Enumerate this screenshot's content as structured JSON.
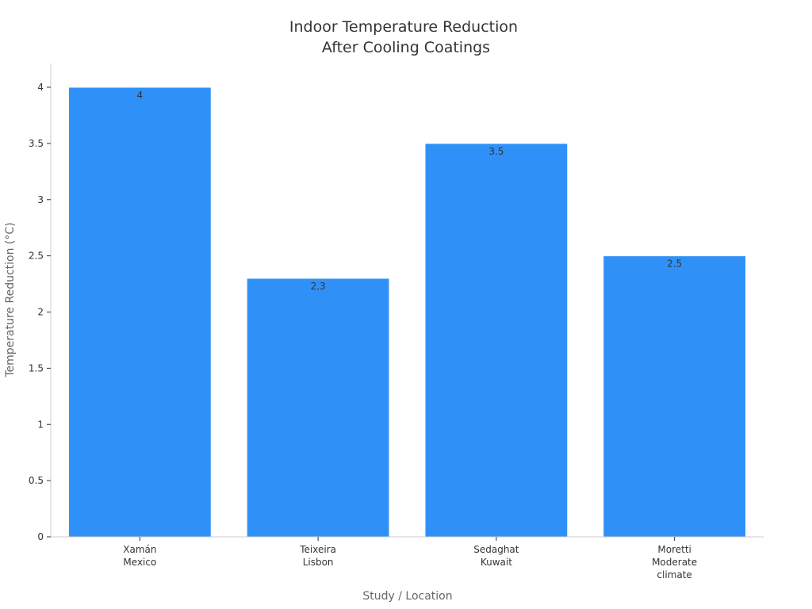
{
  "chart_data": {
    "type": "bar",
    "title": [
      "Indoor Temperature Reduction",
      "After Cooling Coatings"
    ],
    "xlabel": "Study / Location",
    "ylabel": "Temperature Reduction (°C)",
    "categories": [
      [
        "Xamán",
        "Mexico"
      ],
      [
        "Teixeira",
        "Lisbon"
      ],
      [
        "Sedaghat",
        "Kuwait"
      ],
      [
        "Moretti",
        "Moderate",
        "climate"
      ]
    ],
    "values": [
      4,
      2.3,
      3.5,
      2.5
    ],
    "data_labels": [
      "4",
      "2.3",
      "3.5",
      "2.5"
    ],
    "ylim": [
      0,
      4.2
    ],
    "yticks": [
      0,
      0.5,
      1,
      1.5,
      2,
      2.5,
      3,
      3.5,
      4
    ],
    "ytick_labels": [
      "0",
      "0.5",
      "1",
      "1.5",
      "2",
      "2.5",
      "3",
      "3.5",
      "4"
    ],
    "bar_color": "#2f91f7",
    "bar_edge_color": "#ffffff",
    "grid": false,
    "legend": "none"
  }
}
